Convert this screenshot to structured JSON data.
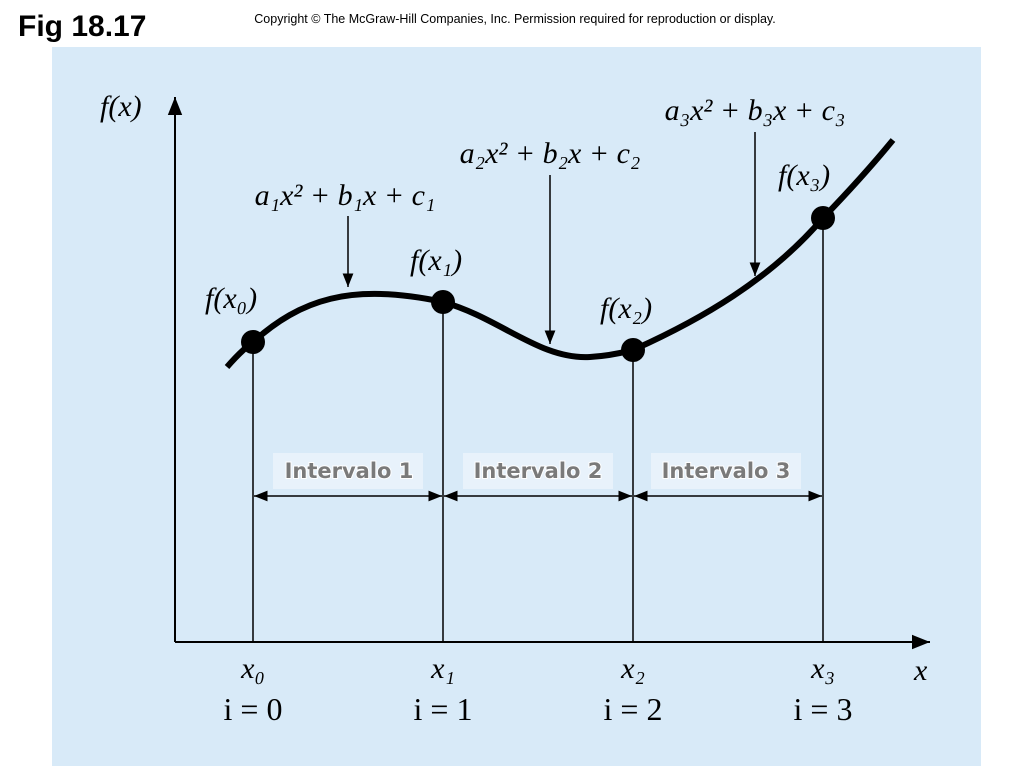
{
  "header": {
    "title": "Fig 18.17",
    "copyright": "Copyright © The McGraw-Hill Companies, Inc. Permission required for reproduction or display."
  },
  "axes": {
    "y_label": "f(x)",
    "x_label": "x"
  },
  "polynomials": [
    "a₁x² + b₁x + c₁",
    "a₂x² + b₂x + c₂",
    "a₃x² + b₃x + c₃"
  ],
  "points": [
    {
      "value_label": "f(x₀)",
      "x_label": "x₀",
      "index_label": "i = 0"
    },
    {
      "value_label": "f(x₁)",
      "x_label": "x₁",
      "index_label": "i = 1"
    },
    {
      "value_label": "f(x₂)",
      "x_label": "x₂",
      "index_label": "i = 2"
    },
    {
      "value_label": "f(x₃)",
      "x_label": "x₃",
      "index_label": "i = 3"
    }
  ],
  "intervals": [
    "Intervalo 1",
    "Intervalo 2",
    "Intervalo 3"
  ]
}
